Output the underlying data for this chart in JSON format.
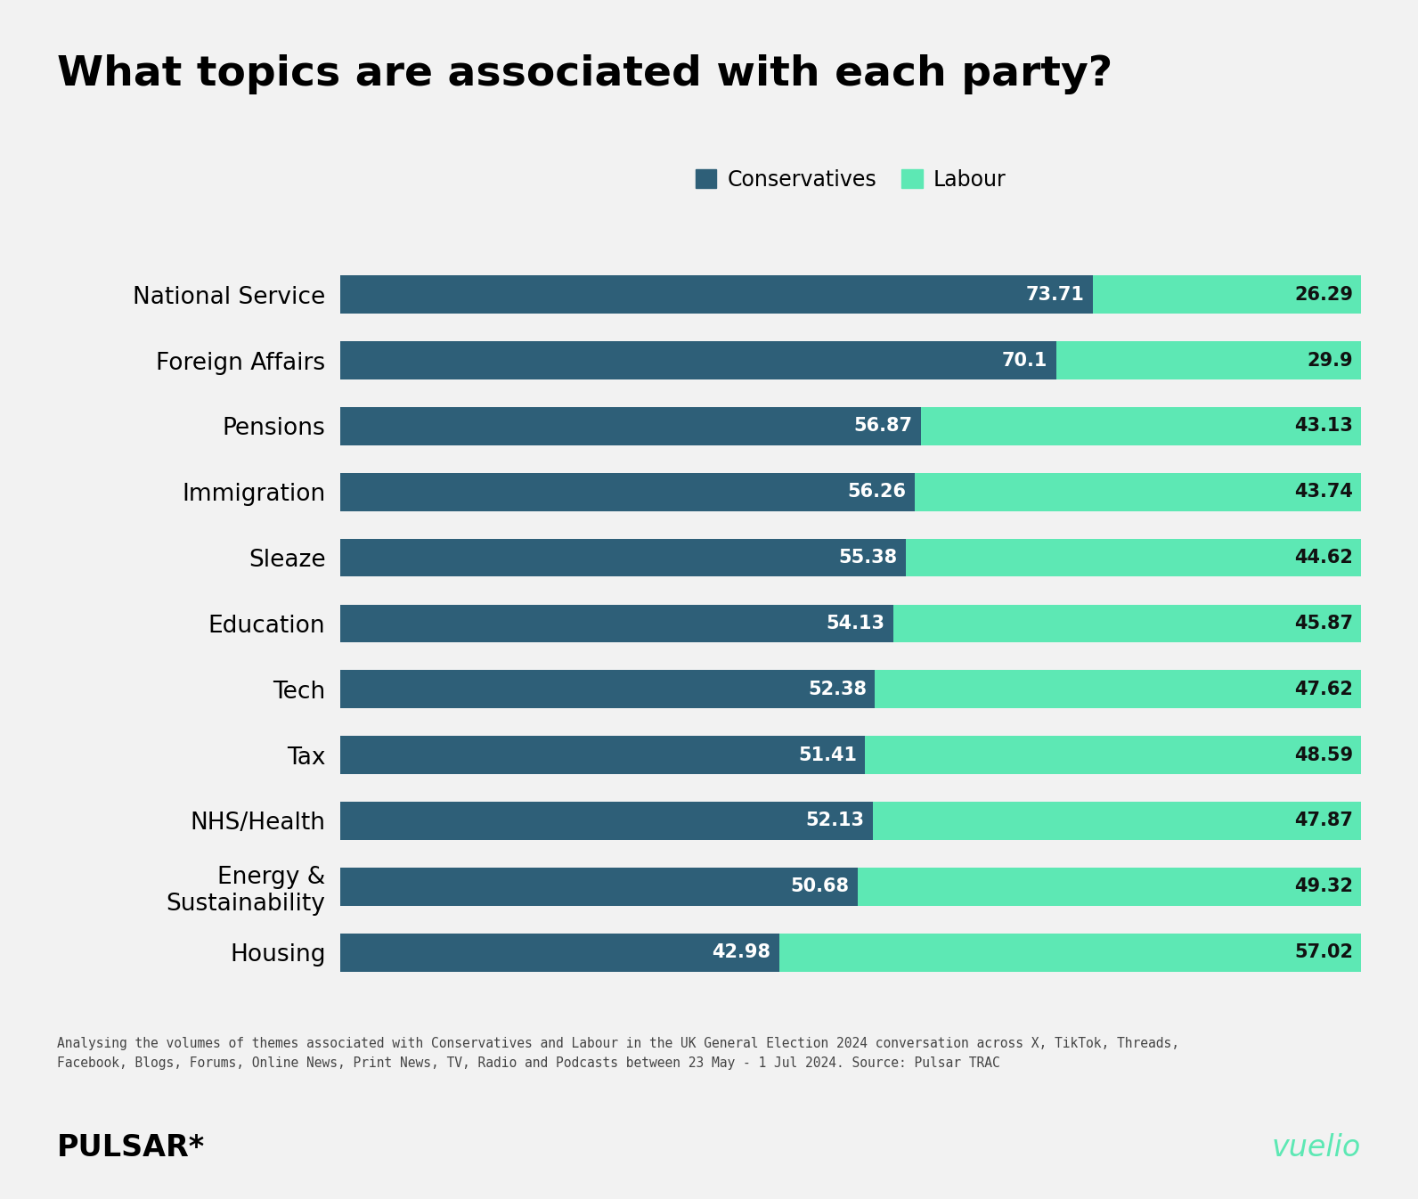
{
  "title": "What topics are associated with each party?",
  "categories": [
    "National Service",
    "Foreign Affairs",
    "Pensions",
    "Immigration",
    "Sleaze",
    "Education",
    "Tech",
    "Tax",
    "NHS/Health",
    "Energy &\nSustainability",
    "Housing"
  ],
  "conservatives": [
    73.71,
    70.1,
    56.87,
    56.26,
    55.38,
    54.13,
    52.38,
    51.41,
    52.13,
    50.68,
    42.98
  ],
  "labour": [
    26.29,
    29.9,
    43.13,
    43.74,
    44.62,
    45.87,
    47.62,
    48.59,
    47.87,
    49.32,
    57.02
  ],
  "conservative_color": "#2e5f78",
  "labour_color": "#5de8b4",
  "background_color": "#f2f2f2",
  "bar_height": 0.58,
  "title_fontsize": 34,
  "label_fontsize": 19,
  "value_fontsize": 15,
  "legend_fontsize": 17,
  "footnote_line1": "Analysing the volumes of themes associated with Conservatives and Labour in the UK General Election 2024 conversation across X, TikTok, Threads,",
  "footnote_line2": "Facebook, Blogs, Forums, Online News, Print News, TV, Radio and Podcasts between 23 May - 1 Jul 2024. Source: Pulsar TRAC",
  "pulsar_text": "PULSAR*",
  "vuelio_text": "vuelio"
}
